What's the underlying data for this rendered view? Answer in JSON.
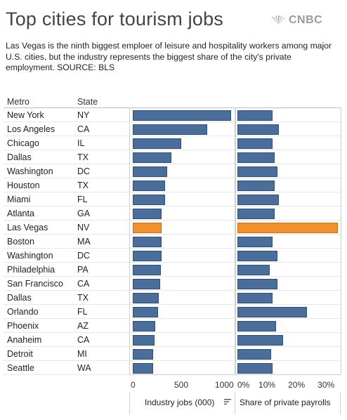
{
  "header": {
    "title": "Top cities for tourism jobs",
    "brand": "CNBC",
    "brand_icon": "peacock-icon",
    "subtitle": "Las Vegas is the ninth biggest emploer of leisure and hospitality workers among major U.S. cities, but the industry represents the biggest share of the city's private employment. SOURCE: BLS"
  },
  "columns": {
    "metro": "Metro",
    "state": "State"
  },
  "colors": {
    "default_bar": "#4a6d9a",
    "highlight_bar": "#f0922e",
    "bar_border": "#2f4f75"
  },
  "chart_data": [
    {
      "type": "bar",
      "orientation": "horizontal",
      "xlabel": "Industry jobs (000)",
      "xlim": [
        0,
        1000
      ],
      "ticks": [
        "0",
        "500",
        "1000"
      ],
      "sort_icon": "sort-descending-icon",
      "categories": [
        "New York",
        "Los Angeles",
        "Chicago",
        "Dallas",
        "Washington",
        "Houston",
        "Miami",
        "Atlanta",
        "Las Vegas",
        "Boston",
        "Washington",
        "Philadelphia",
        "San Francisco",
        "Dallas",
        "Orlando",
        "Phoenix",
        "Anaheim",
        "Detroit",
        "Seattle"
      ],
      "states": [
        "NY",
        "CA",
        "IL",
        "TX",
        "DC",
        "TX",
        "FL",
        "GA",
        "NV",
        "MA",
        "DC",
        "PA",
        "CA",
        "TX",
        "FL",
        "AZ",
        "CA",
        "MI",
        "WA"
      ],
      "values": [
        1000,
        755,
        495,
        390,
        350,
        330,
        325,
        295,
        290,
        290,
        290,
        285,
        280,
        265,
        260,
        230,
        220,
        210,
        205
      ],
      "highlight": "Las Vegas"
    },
    {
      "type": "bar",
      "orientation": "horizontal",
      "xlabel": "Share of private payrolls",
      "xlim": [
        0,
        0.34
      ],
      "ticks": [
        "0%",
        "10%",
        "20%",
        "30%"
      ],
      "categories": [
        "New York",
        "Los Angeles",
        "Chicago",
        "Dallas",
        "Washington",
        "Houston",
        "Miami",
        "Atlanta",
        "Las Vegas",
        "Boston",
        "Washington",
        "Philadelphia",
        "San Francisco",
        "Dallas",
        "Orlando",
        "Phoenix",
        "Anaheim",
        "Detroit",
        "Seattle"
      ],
      "values": [
        0.12,
        0.14,
        0.12,
        0.125,
        0.135,
        0.125,
        0.14,
        0.125,
        0.34,
        0.12,
        0.135,
        0.11,
        0.135,
        0.12,
        0.235,
        0.13,
        0.155,
        0.115,
        0.12
      ],
      "highlight": "Las Vegas"
    }
  ]
}
